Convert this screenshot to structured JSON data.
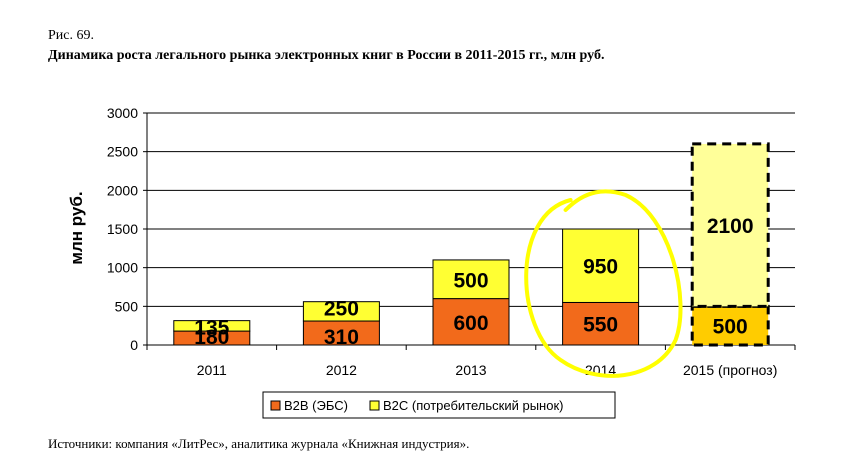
{
  "figure": {
    "label": "Рис. 69.",
    "title": "Динамика роста легального рынка электронных книг в России в 2011-2015 гг., млн руб.",
    "source": "Источники: компания «ЛитРес», аналитика журнала «Книжная индустрия»."
  },
  "chart_data": {
    "type": "bar",
    "stacked": true,
    "categories": [
      "2011",
      "2012",
      "2013",
      "2014",
      "2015 (прогноз)"
    ],
    "series": [
      {
        "name": "B2B (ЭБС)",
        "values": [
          180,
          310,
          600,
          550,
          500
        ],
        "color": "#F26A1B"
      },
      {
        "name": "B2C (потребительский рынок)",
        "values": [
          135,
          250,
          500,
          950,
          2100
        ],
        "color": "#FFFF33"
      }
    ],
    "forecast_category": "2015 (прогноз)",
    "forecast_colors": [
      "#FFCC00",
      "#FFFF99"
    ],
    "ylabel": "млн руб.",
    "ylim": [
      0,
      3000
    ],
    "yticks": [
      0,
      500,
      1000,
      1500,
      2000,
      2500,
      3000
    ],
    "grid": true,
    "legend_position": "bottom",
    "highlight": {
      "category": "2014",
      "color": "#FFFF00"
    }
  }
}
